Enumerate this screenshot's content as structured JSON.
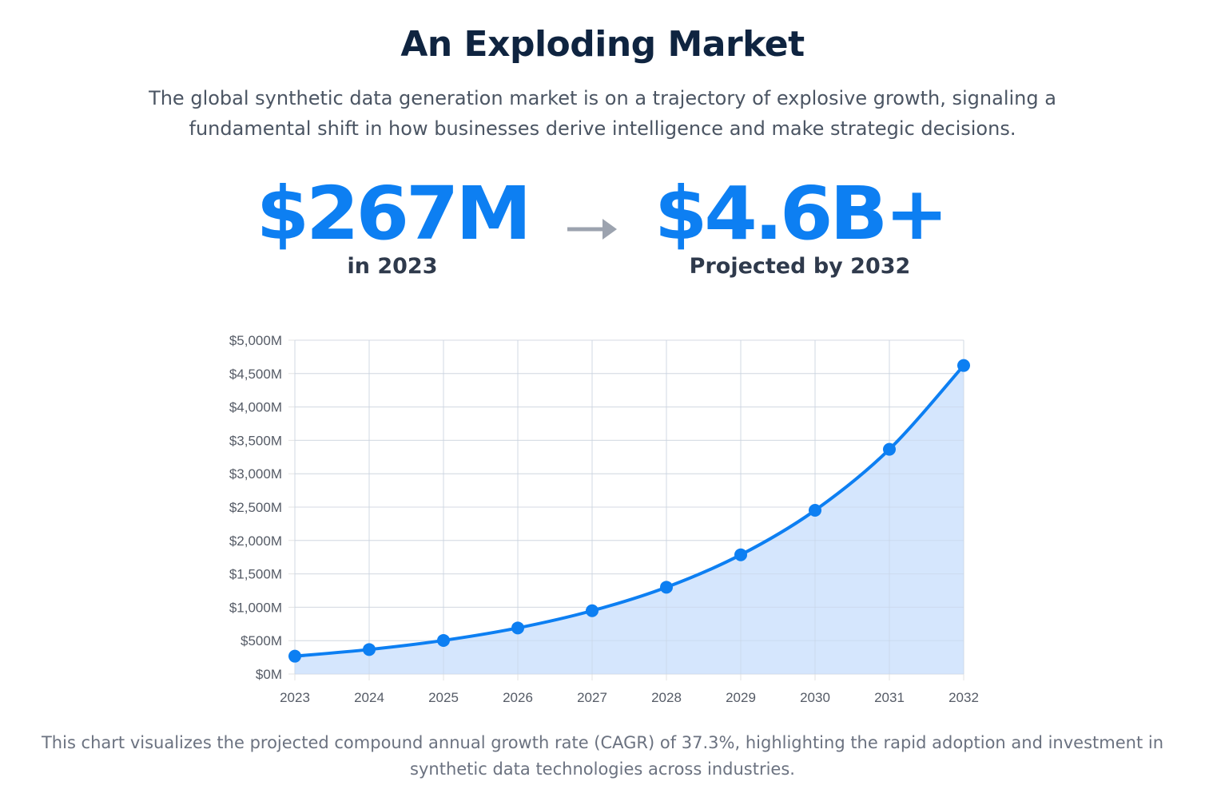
{
  "header": {
    "title": "An Exploding Market",
    "subtitle": "The global synthetic data generation market is on a trajectory of explosive growth, signaling a fundamental shift in how businesses derive intelligence and make strategic decisions."
  },
  "stats": {
    "start_value": "$267M",
    "start_caption": "in 2023",
    "arrow_icon": "arrow-right-icon",
    "end_value": "$4.6B+",
    "end_caption": "Projected by 2032"
  },
  "colors": {
    "accent": "#0d7ff2",
    "title": "#0f2440",
    "area_fill": "#d3e5fd",
    "arrow": "#9ca3af"
  },
  "chart_data": {
    "type": "area",
    "x": [
      "2023",
      "2024",
      "2025",
      "2026",
      "2027",
      "2028",
      "2029",
      "2030",
      "2031",
      "2032"
    ],
    "series": [
      {
        "values": [
          267,
          367,
          503,
          690,
          948,
          1300,
          1786,
          2452,
          3366,
          4621
        ]
      }
    ],
    "ylim": [
      0,
      5000
    ],
    "y_ticks": [
      0,
      500,
      1000,
      1500,
      2000,
      2500,
      3000,
      3500,
      4000,
      4500,
      5000
    ],
    "y_tick_labels": [
      "$0M",
      "$500M",
      "$1,000M",
      "$1,500M",
      "$2,000M",
      "$2,500M",
      "$3,000M",
      "$3,500M",
      "$4,000M",
      "$4,500M",
      "$5,000M"
    ],
    "grid": true,
    "legend": "none"
  },
  "footnote": "This chart visualizes the projected compound annual growth rate (CAGR) of 37.3%, highlighting the rapid adoption and investment in synthetic data technologies across industries."
}
